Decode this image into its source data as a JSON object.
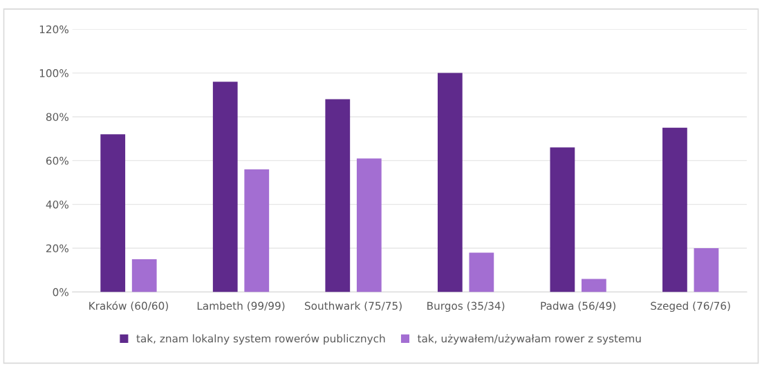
{
  "chart_data": {
    "type": "bar",
    "categories": [
      "Kraków (60/60)",
      "Lambeth (99/99)",
      "Southwark (75/75)",
      "Burgos (35/34)",
      "Padwa (56/49)",
      "Szeged (76/76)"
    ],
    "series": [
      {
        "name": "tak, znam lokalny system rowerów publicznych",
        "color": "#5f2a8c",
        "values": [
          72,
          96,
          88,
          100,
          66,
          75
        ]
      },
      {
        "name": "tak, używałem/używałam rower z systemu",
        "color": "#a36ed2",
        "values": [
          15,
          56,
          61,
          18,
          6,
          20
        ]
      }
    ],
    "ylim": [
      0,
      120
    ],
    "yticks": [
      {
        "value": 0,
        "label": "0%"
      },
      {
        "value": 20,
        "label": "20%"
      },
      {
        "value": 40,
        "label": "40%"
      },
      {
        "value": 60,
        "label": "60%"
      },
      {
        "value": 80,
        "label": "80%"
      },
      {
        "value": 100,
        "label": "100%"
      },
      {
        "value": 120,
        "label": "120%"
      }
    ],
    "grid": "y",
    "legend": "bottom"
  }
}
